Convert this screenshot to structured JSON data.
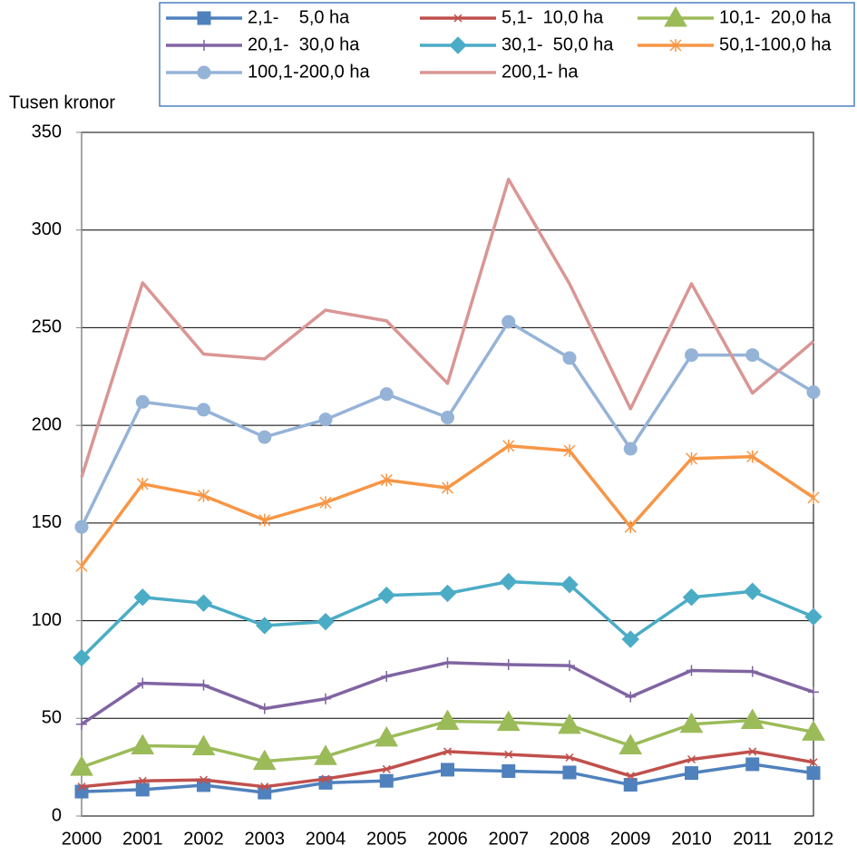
{
  "chart_data": {
    "type": "line",
    "y_label": "Tusen kronor",
    "categories": [
      "2000",
      "2001",
      "2002",
      "2003",
      "2004",
      "2005",
      "2006",
      "2007",
      "2008",
      "2009",
      "2010",
      "2011",
      "2012"
    ],
    "ylim": [
      0,
      350
    ],
    "yticks": [
      0,
      50,
      100,
      150,
      200,
      250,
      300,
      350
    ],
    "grid": true,
    "legend": "top",
    "series": [
      {
        "name": "2,1-    5,0 ha",
        "color": "#4f81bd",
        "marker": "square",
        "values": [
          12.5,
          13.5,
          15.8,
          12,
          17,
          18,
          23.7,
          23,
          22.3,
          16,
          22,
          26.5,
          22
        ]
      },
      {
        "name": "5,1-  10,0 ha",
        "color": "#c0504d",
        "marker": "x",
        "values": [
          15,
          18,
          18.5,
          15,
          19,
          24,
          33,
          31.5,
          30,
          20.5,
          29,
          33,
          27.5
        ]
      },
      {
        "name": "10,1-  20,0 ha",
        "color": "#9bbb59",
        "marker": "triangle",
        "values": [
          25,
          36,
          35.5,
          28,
          30.5,
          40,
          48.5,
          48,
          46.5,
          36,
          47,
          49,
          43
        ]
      },
      {
        "name": "20,1-  30,0 ha",
        "color": "#8064a2",
        "marker": "plus",
        "values": [
          47,
          68,
          67,
          55,
          60,
          71.5,
          78.5,
          77.5,
          77,
          61,
          74.5,
          74,
          63.5
        ]
      },
      {
        "name": "30,1-  50,0 ha",
        "color": "#4bacc6",
        "marker": "diamond",
        "values": [
          81,
          112,
          109,
          97.5,
          99.5,
          113,
          114,
          120,
          118.5,
          90.5,
          112,
          115,
          102
        ]
      },
      {
        "name": "50,1-100,0 ha",
        "color": "#f79646",
        "marker": "asterisk",
        "values": [
          128,
          170,
          164,
          151.5,
          160.5,
          172,
          168,
          189.5,
          187,
          148,
          183,
          184,
          163
        ]
      },
      {
        "name": "100,1-200,0 ha",
        "color": "#95b3d7",
        "marker": "circle",
        "values": [
          148,
          212,
          208,
          194,
          203,
          216,
          204,
          253,
          234.5,
          188,
          236,
          236,
          217
        ]
      },
      {
        "name": "200,1- ha",
        "color": "#d99694",
        "marker": "none",
        "values": [
          173.5,
          273,
          236.5,
          234,
          259,
          253.5,
          221.5,
          326,
          272.5,
          208.5,
          272.5,
          216.5,
          243
        ]
      }
    ]
  }
}
